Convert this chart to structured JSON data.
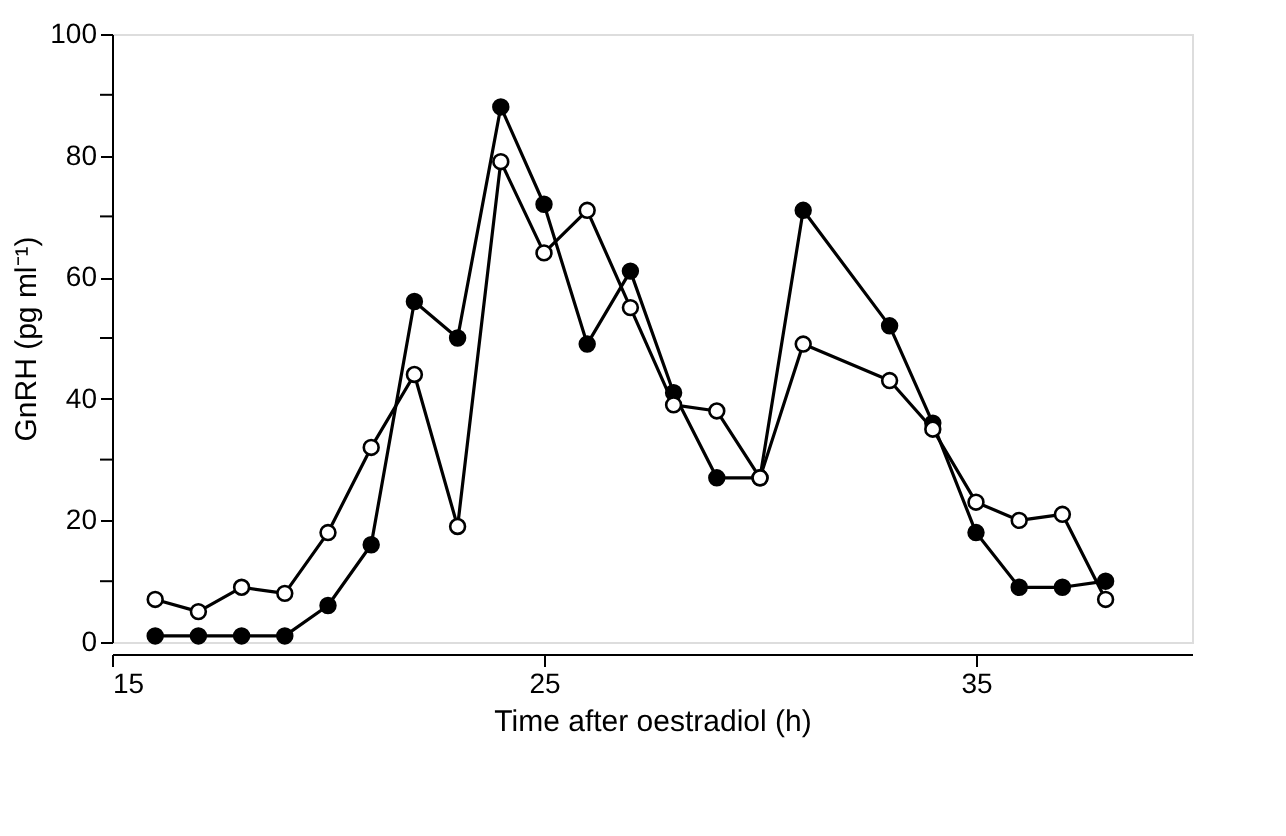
{
  "chart_data": {
    "type": "line",
    "xlabel": "Time after oestradiol (h)",
    "ylabel": "GnRH (pg ml⁻¹)",
    "x": [
      16,
      17,
      18,
      19,
      20,
      21,
      22,
      23,
      24,
      25,
      26,
      27,
      28,
      29,
      30,
      31,
      33,
      34,
      35,
      36,
      37,
      38
    ],
    "series": [
      {
        "color": "#000000",
        "values": [
          1,
          1,
          1,
          1,
          6,
          16,
          56,
          50,
          88,
          72,
          49,
          61,
          41,
          27,
          27,
          71,
          52,
          36,
          18,
          9,
          9,
          10
        ]
      },
      {
        "color": "#ffffff",
        "values": [
          7,
          5,
          9,
          8,
          18,
          32,
          44,
          19,
          79,
          64,
          71,
          55,
          39,
          38,
          27,
          49,
          43,
          35,
          23,
          20,
          21,
          7
        ]
      }
    ],
    "xlim": [
      15,
      40
    ],
    "xticks": [
      15,
      25,
      35
    ],
    "ylim": [
      0,
      100
    ],
    "yticks": [
      0,
      {
        "value": 10,
        "label": null
      },
      20,
      {
        "value": 30,
        "label": null
      },
      40,
      {
        "value": 50,
        "label": null
      },
      60,
      {
        "value": 70,
        "label": null
      },
      80,
      {
        "value": 90,
        "label": null
      },
      100
    ],
    "marker": "circle",
    "line_style": "solid",
    "grid": false
  }
}
